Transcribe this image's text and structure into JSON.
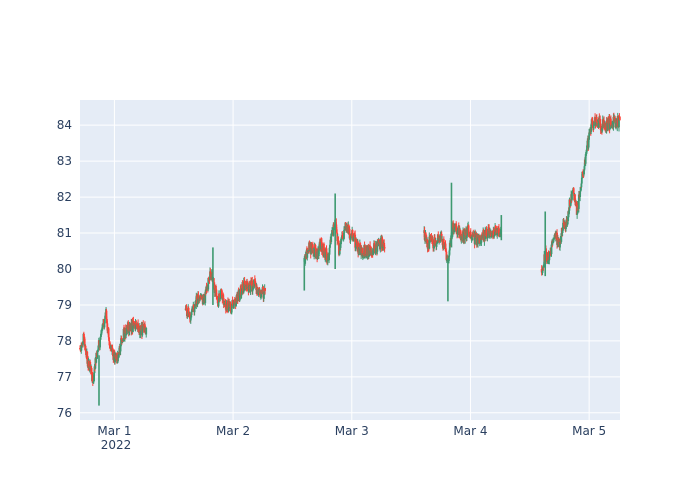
{
  "chart_data": {
    "type": "candlestick",
    "title": "",
    "xlabel": "",
    "ylabel": "",
    "x_tick_labels": [
      "Mar 1",
      "Mar 2",
      "Mar 3",
      "Mar 4",
      "Mar 5"
    ],
    "x_tick_positions_days": [
      1,
      2,
      3,
      4,
      5
    ],
    "x_year_label": "2022",
    "xlim_days": [
      0.71,
      5.26
    ],
    "y_ticks": [
      76,
      77,
      78,
      79,
      80,
      81,
      82,
      83,
      84
    ],
    "ylim": [
      75.8,
      84.7
    ],
    "increasing_color": "#3D9970",
    "decreasing_color": "#FF4136",
    "background_color": "#E5ECF6",
    "grid_color": "#FFFFFF",
    "sessions": [
      {
        "day_start": 0.71,
        "day_end": 1.27,
        "path": [
          [
            0.71,
            77.8
          ],
          [
            0.74,
            78.1
          ],
          [
            0.77,
            77.5
          ],
          [
            0.8,
            77.2
          ],
          [
            0.82,
            76.9
          ],
          [
            0.84,
            77.4
          ],
          [
            0.87,
            77.9
          ],
          [
            0.9,
            78.4
          ],
          [
            0.93,
            78.7
          ],
          [
            0.96,
            78.0
          ],
          [
            0.99,
            77.6
          ],
          [
            1.02,
            77.4
          ],
          [
            1.05,
            77.9
          ],
          [
            1.09,
            78.3
          ],
          [
            1.13,
            78.4
          ],
          [
            1.18,
            78.4
          ],
          [
            1.22,
            78.3
          ],
          [
            1.27,
            78.3
          ]
        ]
      },
      {
        "day_start": 1.6,
        "day_end": 2.27,
        "path": [
          [
            1.6,
            78.9
          ],
          [
            1.64,
            78.7
          ],
          [
            1.68,
            79.0
          ],
          [
            1.72,
            79.3
          ],
          [
            1.75,
            79.1
          ],
          [
            1.78,
            79.4
          ],
          [
            1.81,
            79.9
          ],
          [
            1.84,
            79.5
          ],
          [
            1.87,
            79.1
          ],
          [
            1.9,
            79.3
          ],
          [
            1.94,
            79.0
          ],
          [
            1.98,
            78.9
          ],
          [
            2.02,
            79.1
          ],
          [
            2.06,
            79.3
          ],
          [
            2.1,
            79.6
          ],
          [
            2.14,
            79.5
          ],
          [
            2.18,
            79.6
          ],
          [
            2.22,
            79.4
          ],
          [
            2.27,
            79.3
          ]
        ]
      },
      {
        "day_start": 2.6,
        "day_end": 3.28,
        "path": [
          [
            2.6,
            80.2
          ],
          [
            2.64,
            80.6
          ],
          [
            2.68,
            80.5
          ],
          [
            2.71,
            80.4
          ],
          [
            2.74,
            80.7
          ],
          [
            2.77,
            80.5
          ],
          [
            2.8,
            80.3
          ],
          [
            2.83,
            80.9
          ],
          [
            2.86,
            81.4
          ],
          [
            2.89,
            80.5
          ],
          [
            2.92,
            80.9
          ],
          [
            2.95,
            81.2
          ],
          [
            2.98,
            81.0
          ],
          [
            3.01,
            80.9
          ],
          [
            3.05,
            80.6
          ],
          [
            3.1,
            80.5
          ],
          [
            3.15,
            80.5
          ],
          [
            3.2,
            80.6
          ],
          [
            3.24,
            80.7
          ],
          [
            3.28,
            80.7
          ]
        ]
      },
      {
        "day_start": 3.61,
        "day_end": 4.26,
        "path": [
          [
            3.61,
            81.0
          ],
          [
            3.64,
            80.7
          ],
          [
            3.67,
            80.8
          ],
          [
            3.7,
            80.7
          ],
          [
            3.73,
            80.9
          ],
          [
            3.76,
            80.8
          ],
          [
            3.79,
            80.6
          ],
          [
            3.81,
            80.1
          ],
          [
            3.84,
            81.0
          ],
          [
            3.87,
            81.3
          ],
          [
            3.9,
            81.0
          ],
          [
            3.94,
            80.9
          ],
          [
            3.98,
            81.1
          ],
          [
            4.02,
            80.9
          ],
          [
            4.06,
            80.8
          ],
          [
            4.1,
            80.9
          ],
          [
            4.14,
            81.0
          ],
          [
            4.18,
            81.0
          ],
          [
            4.22,
            81.1
          ],
          [
            4.26,
            81.0
          ]
        ]
      },
      {
        "day_start": 4.6,
        "day_end": 5.26,
        "path": [
          [
            4.6,
            80.0
          ],
          [
            4.63,
            80.4
          ],
          [
            4.66,
            80.3
          ],
          [
            4.69,
            80.7
          ],
          [
            4.72,
            80.9
          ],
          [
            4.75,
            80.7
          ],
          [
            4.78,
            81.2
          ],
          [
            4.81,
            81.3
          ],
          [
            4.84,
            81.9
          ],
          [
            4.87,
            82.1
          ],
          [
            4.9,
            81.6
          ],
          [
            4.93,
            82.3
          ],
          [
            4.96,
            82.9
          ],
          [
            4.99,
            83.5
          ],
          [
            5.02,
            84.0
          ],
          [
            5.05,
            84.1
          ],
          [
            5.1,
            84.0
          ],
          [
            5.15,
            84.0
          ],
          [
            5.2,
            84.1
          ],
          [
            5.26,
            84.1
          ]
        ]
      }
    ],
    "spikes": [
      {
        "day": 0.87,
        "low": 76.2,
        "high": 77.6
      },
      {
        "day": 1.83,
        "low": 79.0,
        "high": 80.6
      },
      {
        "day": 2.6,
        "low": 79.4,
        "high": 80.3
      },
      {
        "day": 2.86,
        "low": 80.0,
        "high": 82.1
      },
      {
        "day": 3.81,
        "low": 79.1,
        "high": 80.3
      },
      {
        "day": 3.84,
        "low": 80.6,
        "high": 82.4
      },
      {
        "day": 4.26,
        "low": 80.8,
        "high": 81.5
      },
      {
        "day": 4.63,
        "low": 79.8,
        "high": 81.6
      }
    ]
  }
}
